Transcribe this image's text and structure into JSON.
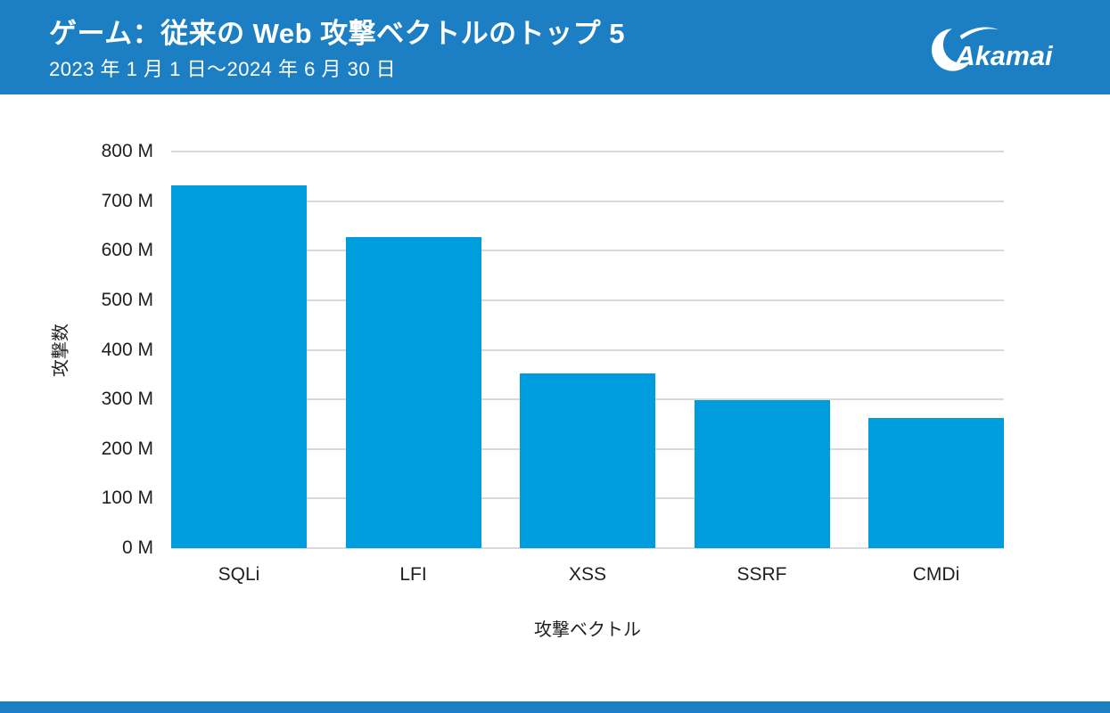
{
  "header": {
    "title": "ゲーム：従来の Web 攻撃ベクトルのトップ 5",
    "subtitle": "2023 年 1 月 1 日～2024 年 6 月 30 日",
    "logo_text": "Akamai",
    "background_color": "#1c7fc3",
    "text_color": "#ffffff"
  },
  "chart_data": {
    "type": "bar",
    "title": "ゲーム：従来の Web 攻撃ベクトルのトップ 5",
    "subtitle": "2023 年 1 月 1 日～2024 年 6 月 30 日",
    "categories": [
      "SQLi",
      "LFI",
      "XSS",
      "SSRF",
      "CMDi"
    ],
    "values": [
      731,
      627,
      352,
      298,
      262
    ],
    "value_unit": "M",
    "xlabel": "攻撃ベクトル",
    "ylabel": "攻撃数",
    "ylim": [
      0,
      800
    ],
    "ytick_step": 100,
    "ytick_labels": [
      "0 M",
      "100 M",
      "200 M",
      "300 M",
      "400 M",
      "500 M",
      "600 M",
      "700 M",
      "800 M"
    ],
    "grid": true,
    "legend": false,
    "bar_color": "#009dde",
    "gridline_color": "#d9d9d9",
    "text_color": "#1f1f1f"
  },
  "footer": {
    "background_color": "#1c7fc3"
  }
}
